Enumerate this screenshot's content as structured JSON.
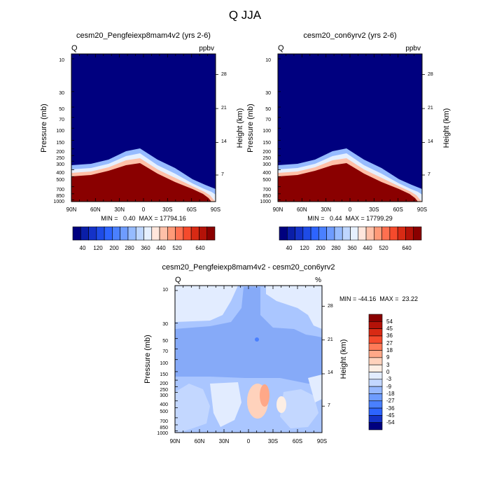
{
  "page_title": "Q JJA",
  "chart_data": [
    {
      "type": "heatmap",
      "title": "cesm20_Pengfeiexp8mam4v2 (yrs 2-6)",
      "left_label": "Q",
      "units": "ppbv",
      "ylabel": "Pressure (mb)",
      "ylabel_right": "Height (km)",
      "x_ticks": [
        "90N",
        "60N",
        "30N",
        "0",
        "30S",
        "60S",
        "90S"
      ],
      "y_ticks": [
        "10",
        "30",
        "50",
        "70",
        "100",
        "150",
        "200",
        "250",
        "300",
        "400",
        "500",
        "700",
        "850",
        "1000"
      ],
      "height_ticks": [
        "28",
        "21",
        "14",
        "7"
      ],
      "stats": "MIN =   0.40  MAX = 17794.16",
      "colorbar_labels": [
        "40",
        "120",
        "200",
        "280",
        "360",
        "440",
        "520",
        "640"
      ]
    },
    {
      "type": "heatmap",
      "title": "cesm20_con6yrv2 (yrs 2-6)",
      "left_label": "Q",
      "units": "ppbv",
      "ylabel": "Pressure (mb)",
      "ylabel_right": "Height (km)",
      "x_ticks": [
        "90N",
        "60N",
        "30N",
        "0",
        "30S",
        "60S",
        "90S"
      ],
      "y_ticks": [
        "10",
        "30",
        "50",
        "70",
        "100",
        "150",
        "200",
        "250",
        "300",
        "400",
        "500",
        "700",
        "850",
        "1000"
      ],
      "height_ticks": [
        "28",
        "21",
        "14",
        "7"
      ],
      "stats": "MIN =   0.44  MAX = 17799.29",
      "colorbar_labels": [
        "40",
        "120",
        "200",
        "280",
        "360",
        "440",
        "520",
        "640"
      ]
    },
    {
      "type": "heatmap",
      "title": "cesm20_Pengfeiexp8mam4v2 - cesm20_con6yrv2",
      "left_label": "Q",
      "units": "%",
      "ylabel": "Pressure (mb)",
      "ylabel_right": "Height (km)",
      "x_ticks": [
        "90N",
        "60N",
        "30N",
        "0",
        "30S",
        "60S",
        "90S"
      ],
      "y_ticks": [
        "10",
        "30",
        "50",
        "70",
        "100",
        "150",
        "200",
        "250",
        "300",
        "400",
        "500",
        "700",
        "850",
        "1000"
      ],
      "height_ticks": [
        "28",
        "21",
        "14",
        "7"
      ],
      "stats": "MIN = -44.16  MAX =  23.22",
      "colorbar_labels": [
        "54",
        "45",
        "36",
        "27",
        "18",
        "9",
        "3",
        "0",
        "-3",
        "-9",
        "-18",
        "-27",
        "-36",
        "-45",
        "-54"
      ]
    }
  ],
  "colors": {
    "abs_scale": [
      "#00007f",
      "#0a1ea8",
      "#1432c8",
      "#1e4be6",
      "#2d64ff",
      "#4a80ff",
      "#6e9cff",
      "#96bbff",
      "#bed6ff",
      "#e6f0ff",
      "#ffe6dc",
      "#ffc0a8",
      "#ff9a78",
      "#ff7050",
      "#f54a2c",
      "#d82a14",
      "#b41208",
      "#8a0000"
    ],
    "diff_scale": [
      "#8a0000",
      "#b41208",
      "#d82a14",
      "#f54a2c",
      "#ff7a58",
      "#ffa888",
      "#ffd2bc",
      "#fdeee4",
      "#e2ecff",
      "#c3d7ff",
      "#96b8ff",
      "#6e9cff",
      "#4a80ff",
      "#2d64ff",
      "#1432c8",
      "#00007f"
    ],
    "upper_fill": "#00007f",
    "lower_fill": "#8a0000",
    "diff_base": "#aac6ff",
    "diff_band": "#86aaf8"
  }
}
